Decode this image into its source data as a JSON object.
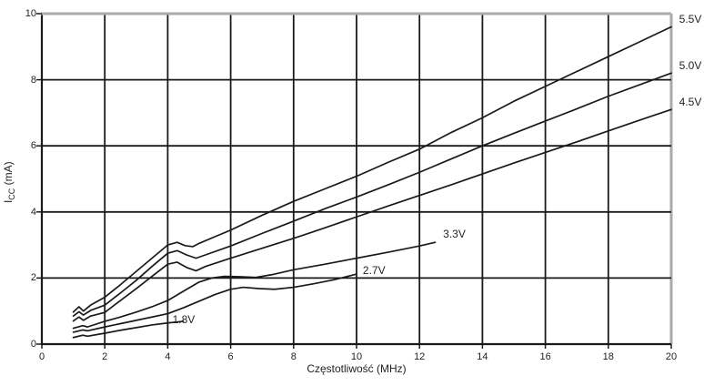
{
  "chart_data": {
    "type": "line",
    "title": "",
    "xlabel": "Częstotliwość (MHz)",
    "ylabel_main": "I",
    "ylabel_sub": "CC",
    "ylabel_unit": "(mA)",
    "xlim": [
      0,
      20
    ],
    "ylim": [
      0,
      10
    ],
    "xticks": [
      0,
      2,
      4,
      6,
      8,
      10,
      12,
      14,
      16,
      18,
      20
    ],
    "yticks": [
      0,
      2,
      4,
      6,
      8,
      10
    ],
    "grid": true,
    "legend_position": "labels-on-plot",
    "colors": {
      "curve": "#1a1a1a",
      "grid": "#1a1a1a",
      "frame_light": "#a8aaad",
      "text": "#232323",
      "background": "#ffffff"
    },
    "series": [
      {
        "name": "5.5V",
        "label_pos": {
          "x": 20.25,
          "y": 9.8,
          "anchor": "start"
        },
        "points": [
          [
            1,
            0.97
          ],
          [
            1.18,
            1.13
          ],
          [
            1.32,
            1.0
          ],
          [
            1.55,
            1.18
          ],
          [
            2,
            1.42
          ],
          [
            2.5,
            1.8
          ],
          [
            3,
            2.2
          ],
          [
            3.5,
            2.6
          ],
          [
            4,
            3.0
          ],
          [
            4.3,
            3.08
          ],
          [
            4.55,
            2.98
          ],
          [
            4.8,
            2.95
          ],
          [
            5,
            3.05
          ],
          [
            5.5,
            3.25
          ],
          [
            6,
            3.45
          ],
          [
            7,
            3.9
          ],
          [
            8,
            4.32
          ],
          [
            9,
            4.7
          ],
          [
            10,
            5.08
          ],
          [
            11,
            5.5
          ],
          [
            12,
            5.9
          ],
          [
            13,
            6.4
          ],
          [
            14,
            6.85
          ],
          [
            15,
            7.35
          ],
          [
            16,
            7.8
          ],
          [
            17,
            8.25
          ],
          [
            18,
            8.7
          ],
          [
            19,
            9.15
          ],
          [
            20,
            9.6
          ]
        ]
      },
      {
        "name": "5.0V",
        "label_pos": {
          "x": 20.25,
          "y": 8.4,
          "anchor": "start"
        },
        "points": [
          [
            1,
            0.85
          ],
          [
            1.18,
            0.98
          ],
          [
            1.32,
            0.88
          ],
          [
            1.55,
            1.02
          ],
          [
            2,
            1.18
          ],
          [
            2.5,
            1.55
          ],
          [
            3,
            1.93
          ],
          [
            3.5,
            2.35
          ],
          [
            4,
            2.75
          ],
          [
            4.3,
            2.83
          ],
          [
            4.6,
            2.7
          ],
          [
            4.9,
            2.6
          ],
          [
            5.2,
            2.7
          ],
          [
            6,
            2.97
          ],
          [
            7,
            3.35
          ],
          [
            8,
            3.72
          ],
          [
            9,
            4.1
          ],
          [
            10,
            4.45
          ],
          [
            11,
            4.82
          ],
          [
            12,
            5.2
          ],
          [
            13,
            5.6
          ],
          [
            14,
            6.0
          ],
          [
            15,
            6.38
          ],
          [
            16,
            6.75
          ],
          [
            17,
            7.12
          ],
          [
            18,
            7.5
          ],
          [
            19,
            7.85
          ],
          [
            20,
            8.2
          ]
        ]
      },
      {
        "name": "4.5V",
        "label_pos": {
          "x": 20.25,
          "y": 7.3,
          "anchor": "start"
        },
        "points": [
          [
            1,
            0.7
          ],
          [
            1.18,
            0.82
          ],
          [
            1.32,
            0.72
          ],
          [
            1.55,
            0.85
          ],
          [
            2,
            0.96
          ],
          [
            2.5,
            1.32
          ],
          [
            3,
            1.68
          ],
          [
            3.5,
            2.05
          ],
          [
            4,
            2.42
          ],
          [
            4.3,
            2.48
          ],
          [
            4.6,
            2.32
          ],
          [
            4.9,
            2.22
          ],
          [
            5.2,
            2.35
          ],
          [
            6,
            2.6
          ],
          [
            7,
            2.9
          ],
          [
            8,
            3.2
          ],
          [
            9,
            3.52
          ],
          [
            10,
            3.85
          ],
          [
            11,
            4.18
          ],
          [
            12,
            4.5
          ],
          [
            13,
            4.82
          ],
          [
            14,
            5.15
          ],
          [
            15,
            5.48
          ],
          [
            16,
            5.8
          ],
          [
            17,
            6.12
          ],
          [
            18,
            6.45
          ],
          [
            19,
            6.78
          ],
          [
            20,
            7.1
          ]
        ]
      },
      {
        "name": "3.3V",
        "label_pos": {
          "x": 12.75,
          "y": 3.3,
          "anchor": "start"
        },
        "points": [
          [
            1,
            0.48
          ],
          [
            1.3,
            0.56
          ],
          [
            1.45,
            0.52
          ],
          [
            2,
            0.69
          ],
          [
            2.5,
            0.82
          ],
          [
            3,
            0.97
          ],
          [
            3.5,
            1.13
          ],
          [
            4,
            1.32
          ],
          [
            4.5,
            1.6
          ],
          [
            5,
            1.88
          ],
          [
            5.4,
            2.0
          ],
          [
            5.8,
            2.05
          ],
          [
            6.3,
            2.04
          ],
          [
            6.8,
            2.02
          ],
          [
            7.3,
            2.1
          ],
          [
            8,
            2.25
          ],
          [
            9,
            2.42
          ],
          [
            10,
            2.6
          ],
          [
            11,
            2.78
          ],
          [
            12,
            2.97
          ],
          [
            12.5,
            3.08
          ]
        ]
      },
      {
        "name": "2.7V",
        "label_pos": {
          "x": 10.2,
          "y": 2.2,
          "anchor": "start"
        },
        "points": [
          [
            1,
            0.36
          ],
          [
            1.3,
            0.43
          ],
          [
            1.45,
            0.4
          ],
          [
            2,
            0.52
          ],
          [
            2.5,
            0.62
          ],
          [
            3,
            0.72
          ],
          [
            3.5,
            0.82
          ],
          [
            4,
            0.92
          ],
          [
            4.5,
            1.1
          ],
          [
            5,
            1.3
          ],
          [
            5.5,
            1.5
          ],
          [
            6,
            1.66
          ],
          [
            6.4,
            1.72
          ],
          [
            6.9,
            1.68
          ],
          [
            7.4,
            1.66
          ],
          [
            8,
            1.72
          ],
          [
            8.6,
            1.82
          ],
          [
            9.3,
            1.95
          ],
          [
            10,
            2.12
          ]
        ]
      },
      {
        "name": "1.8V",
        "label_pos": {
          "x": 4.15,
          "y": 0.72,
          "anchor": "start"
        },
        "points": [
          [
            1,
            0.2
          ],
          [
            1.3,
            0.27
          ],
          [
            1.45,
            0.24
          ],
          [
            2,
            0.33
          ],
          [
            2.5,
            0.42
          ],
          [
            3,
            0.5
          ],
          [
            3.5,
            0.58
          ],
          [
            4,
            0.64
          ],
          [
            4.5,
            0.69
          ]
        ]
      }
    ]
  }
}
